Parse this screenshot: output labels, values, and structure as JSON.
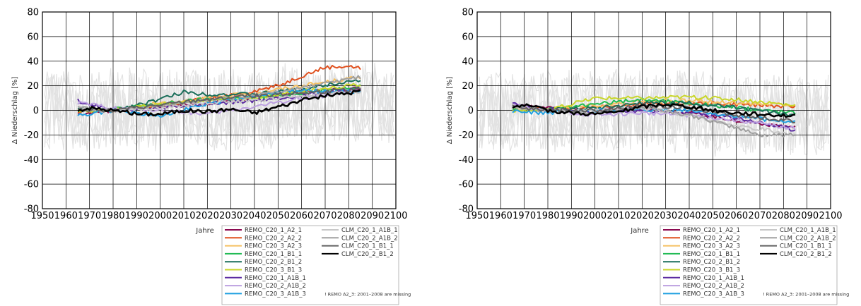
{
  "chart_data": [
    {
      "type": "line",
      "xlabel": "Jahre",
      "ylabel": "Δ Niederschlag [%]",
      "xlim": [
        1950,
        2100
      ],
      "ylim": [
        -80,
        80
      ],
      "x_ticks": [
        1950,
        1960,
        1970,
        1980,
        1990,
        2000,
        2010,
        2020,
        2030,
        2040,
        2050,
        2060,
        2070,
        2080,
        2090,
        2100
      ],
      "y_ticks": [
        -80,
        -60,
        -40,
        -20,
        0,
        20,
        40,
        60,
        80
      ],
      "grid": true,
      "legend_position": "bottom-right",
      "note": "! REMO A2_3: 2001–2008 are missing",
      "series": [
        {
          "name": "REMO_C20_1_A2_1",
          "color": "#8b0a50",
          "x": [
            1965,
            1980,
            2000,
            2020,
            2040,
            2060,
            2085
          ],
          "y": [
            -3,
            0,
            3,
            6,
            10,
            15,
            18
          ]
        },
        {
          "name": "REMO_C20_2_A2_2",
          "color": "#e0501e",
          "x": [
            1965,
            1980,
            2000,
            2010,
            2030,
            2050,
            2060,
            2070,
            2080,
            2085
          ],
          "y": [
            -2,
            0,
            4,
            7,
            12,
            20,
            28,
            35,
            36,
            34
          ]
        },
        {
          "name": "REMO_C20_3_A2_3",
          "color": "#f5c060",
          "x": [
            1965,
            1980,
            2000,
            2020,
            2040,
            2060,
            2085
          ],
          "y": [
            0,
            0,
            6,
            10,
            14,
            20,
            27
          ]
        },
        {
          "name": "REMO_C20_1_B1_1",
          "color": "#22bb55",
          "x": [
            1965,
            1980,
            2000,
            2020,
            2040,
            2060,
            2085
          ],
          "y": [
            0,
            1,
            5,
            9,
            10,
            14,
            20
          ]
        },
        {
          "name": "REMO_C20_2_B1_2",
          "color": "#1a6e5a",
          "x": [
            1965,
            1980,
            2000,
            2010,
            2020,
            2040,
            2060,
            2080,
            2085
          ],
          "y": [
            2,
            0,
            9,
            15,
            13,
            13,
            17,
            24,
            24
          ]
        },
        {
          "name": "REMO_C20_3_B1_3",
          "color": "#c8d62a",
          "x": [
            1965,
            1980,
            2000,
            2020,
            2040,
            2060,
            2085
          ],
          "y": [
            0,
            0,
            5,
            8,
            10,
            16,
            21
          ]
        },
        {
          "name": "REMO_C20_1_A1B_1",
          "color": "#5a2aa0",
          "x": [
            1965,
            1970,
            1980,
            2000,
            2020,
            2040,
            2060,
            2085
          ],
          "y": [
            8,
            5,
            0,
            2,
            5,
            8,
            12,
            18
          ]
        },
        {
          "name": "REMO_C20_2_A1B_2",
          "color": "#bca0e0",
          "x": [
            1965,
            1980,
            2000,
            2020,
            2040,
            2060,
            2085
          ],
          "y": [
            6,
            2,
            0,
            -3,
            3,
            10,
            15
          ]
        },
        {
          "name": "REMO_C20_3_A1B_3",
          "color": "#20a0e0",
          "x": [
            1965,
            1970,
            1980,
            2000,
            2020,
            2040,
            2060,
            2085
          ],
          "y": [
            -4,
            -3,
            0,
            -4,
            5,
            12,
            16,
            15
          ]
        },
        {
          "name": "CLM_C20_1_A1B_1",
          "color": "#c8c8c8",
          "x": [
            1965,
            1980,
            2000,
            2020,
            2040,
            2060,
            2085
          ],
          "y": [
            0,
            0,
            2,
            6,
            8,
            12,
            15
          ]
        },
        {
          "name": "CLM_C20_2_A1B_2",
          "color": "#a0a0a0",
          "x": [
            1965,
            1980,
            2000,
            2020,
            2040,
            2060,
            2085
          ],
          "y": [
            2,
            0,
            4,
            8,
            12,
            18,
            27
          ]
        },
        {
          "name": "CLM_C20_1_B1_1",
          "color": "#606060",
          "x": [
            1965,
            1980,
            2000,
            2020,
            2040,
            2060,
            2085
          ],
          "y": [
            1,
            0,
            4,
            9,
            12,
            14,
            17
          ]
        },
        {
          "name": "CLM_C20_2_B1_2",
          "color": "#000000",
          "x": [
            1965,
            1970,
            1980,
            1990,
            2000,
            2010,
            2020,
            2030,
            2040,
            2050,
            2060,
            2070,
            2080,
            2085
          ],
          "y": [
            0,
            2,
            0,
            -3,
            -3,
            0,
            -1,
            1,
            -2,
            3,
            8,
            12,
            14,
            16
          ]
        }
      ]
    },
    {
      "type": "line",
      "xlabel": "Jahre",
      "ylabel": "Δ Niederschlag [%]",
      "xlim": [
        1950,
        2100
      ],
      "ylim": [
        -80,
        80
      ],
      "x_ticks": [
        1950,
        1960,
        1970,
        1980,
        1990,
        2000,
        2010,
        2020,
        2030,
        2040,
        2050,
        2060,
        2070,
        2080,
        2090,
        2100
      ],
      "y_ticks": [
        -80,
        -60,
        -40,
        -20,
        0,
        20,
        40,
        60,
        80
      ],
      "grid": true,
      "legend_position": "bottom-right",
      "note": "! REMO A2_3: 2001–2008 are missing",
      "series": [
        {
          "name": "REMO_C20_1_A2_1",
          "color": "#8b0a50",
          "x": [
            1965,
            1980,
            2000,
            2020,
            2040,
            2060,
            2085
          ],
          "y": [
            4,
            2,
            0,
            2,
            -2,
            -8,
            -14
          ]
        },
        {
          "name": "REMO_C20_2_A2_2",
          "color": "#e0501e",
          "x": [
            1965,
            1980,
            2000,
            2020,
            2040,
            2060,
            2085
          ],
          "y": [
            3,
            1,
            3,
            5,
            6,
            5,
            3
          ]
        },
        {
          "name": "REMO_C20_3_A2_3",
          "color": "#f5c060",
          "x": [
            1965,
            1980,
            2000,
            2020,
            2040,
            2060,
            2085
          ],
          "y": [
            2,
            0,
            4,
            7,
            8,
            6,
            5
          ]
        },
        {
          "name": "REMO_C20_1_B1_1",
          "color": "#22bb55",
          "x": [
            1965,
            1980,
            2000,
            2020,
            2040,
            2060,
            2085
          ],
          "y": [
            2,
            0,
            5,
            9,
            6,
            2,
            -2
          ]
        },
        {
          "name": "REMO_C20_2_B1_2",
          "color": "#1a6e5a",
          "x": [
            1965,
            1980,
            2000,
            2020,
            2040,
            2060,
            2085
          ],
          "y": [
            4,
            1,
            2,
            6,
            6,
            2,
            -4
          ]
        },
        {
          "name": "REMO_C20_3_B1_3",
          "color": "#c8d62a",
          "x": [
            1965,
            1980,
            2000,
            2020,
            2040,
            2060,
            2085
          ],
          "y": [
            0,
            0,
            10,
            10,
            11,
            9,
            4
          ]
        },
        {
          "name": "REMO_C20_1_A1B_1",
          "color": "#5a2aa0",
          "x": [
            1965,
            1980,
            2000,
            2020,
            2040,
            2060,
            2085
          ],
          "y": [
            5,
            1,
            -2,
            0,
            -2,
            -6,
            -16
          ]
        },
        {
          "name": "REMO_C20_2_A1B_2",
          "color": "#bca0e0",
          "x": [
            1965,
            1980,
            2000,
            2020,
            2040,
            2060,
            2085
          ],
          "y": [
            4,
            0,
            -4,
            -2,
            -4,
            -8,
            -15
          ]
        },
        {
          "name": "REMO_C20_3_A1B_3",
          "color": "#20a0e0",
          "x": [
            1965,
            1980,
            2000,
            2020,
            2040,
            2060,
            2085
          ],
          "y": [
            -1,
            -2,
            0,
            0,
            0,
            -5,
            -10
          ]
        },
        {
          "name": "CLM_C20_1_A1B_1",
          "color": "#c8c8c8",
          "x": [
            1965,
            1980,
            2000,
            2020,
            2040,
            2060,
            2085
          ],
          "y": [
            2,
            0,
            0,
            2,
            -4,
            -12,
            -20
          ]
        },
        {
          "name": "CLM_C20_2_A1B_2",
          "color": "#a0a0a0",
          "x": [
            1965,
            1980,
            2000,
            2020,
            2040,
            2060,
            2070,
            2085
          ],
          "y": [
            3,
            0,
            -2,
            3,
            -4,
            -14,
            -20,
            -20
          ]
        },
        {
          "name": "CLM_C20_1_B1_1",
          "color": "#606060",
          "x": [
            1965,
            1980,
            2000,
            2020,
            2040,
            2060,
            2085
          ],
          "y": [
            3,
            0,
            0,
            4,
            2,
            -4,
            -9
          ]
        },
        {
          "name": "CLM_C20_2_B1_2",
          "color": "#000000",
          "x": [
            1965,
            1970,
            1980,
            1990,
            2000,
            2010,
            2020,
            2030,
            2040,
            2050,
            2060,
            2070,
            2080,
            2085
          ],
          "y": [
            3,
            4,
            0,
            -2,
            -3,
            -1,
            3,
            5,
            3,
            0,
            -2,
            -3,
            -4,
            -5
          ]
        }
      ]
    }
  ]
}
